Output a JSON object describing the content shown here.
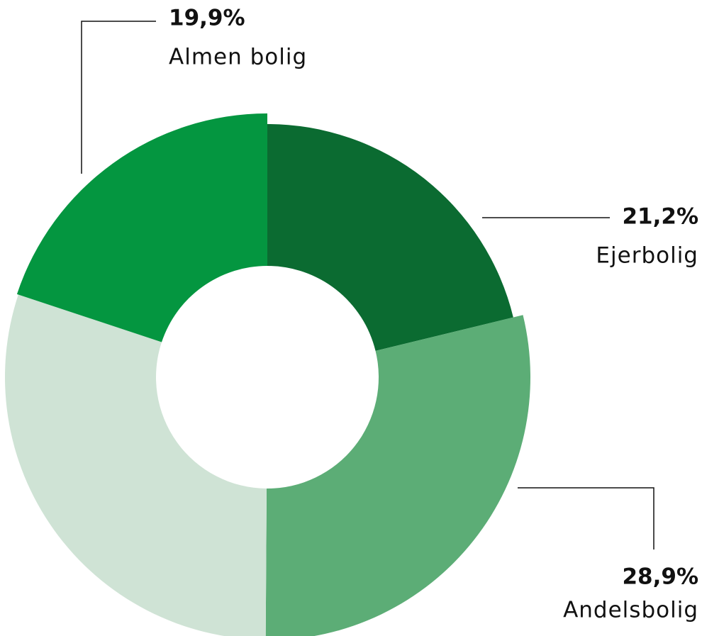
{
  "chart_data": {
    "type": "donut",
    "categories": [
      "Ejerbolig",
      "Andelsbolig",
      null,
      "Almen bolig"
    ],
    "values": [
      21.2,
      28.9,
      30.0,
      19.9
    ],
    "value_labels": [
      "21,2%",
      "28,9%",
      null,
      "19,9%"
    ],
    "colors": [
      "#0b6b31",
      "#5cad76",
      "#cfe3d5",
      "#049640"
    ]
  }
}
